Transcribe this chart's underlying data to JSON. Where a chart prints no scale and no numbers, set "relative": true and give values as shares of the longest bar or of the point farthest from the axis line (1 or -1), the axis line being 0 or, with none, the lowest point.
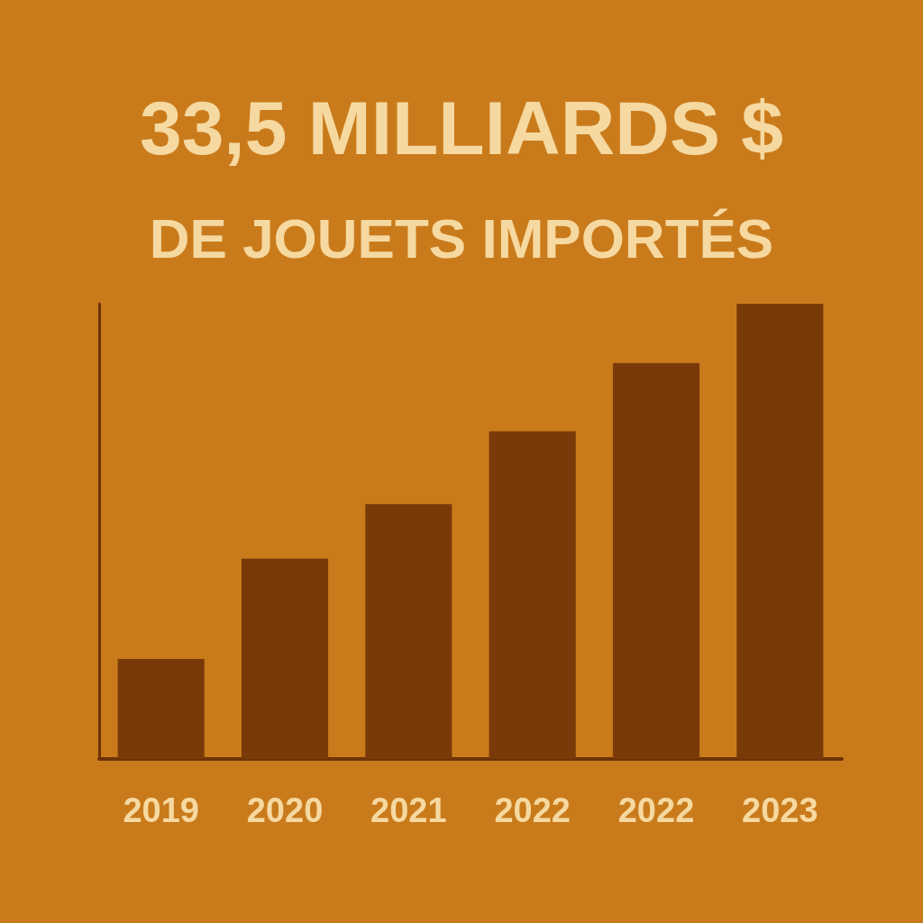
{
  "chart_data": {
    "type": "bar",
    "title": "33,5 MILLIARDS $",
    "subtitle": "DE JOUETS IMPORTÉS",
    "categories": [
      "2019",
      "2020",
      "2021",
      "2022",
      "2022",
      "2023"
    ],
    "values": [
      0.22,
      0.44,
      0.56,
      0.72,
      0.87,
      1
    ],
    "color": "#7a3a08",
    "relative": true
  }
}
